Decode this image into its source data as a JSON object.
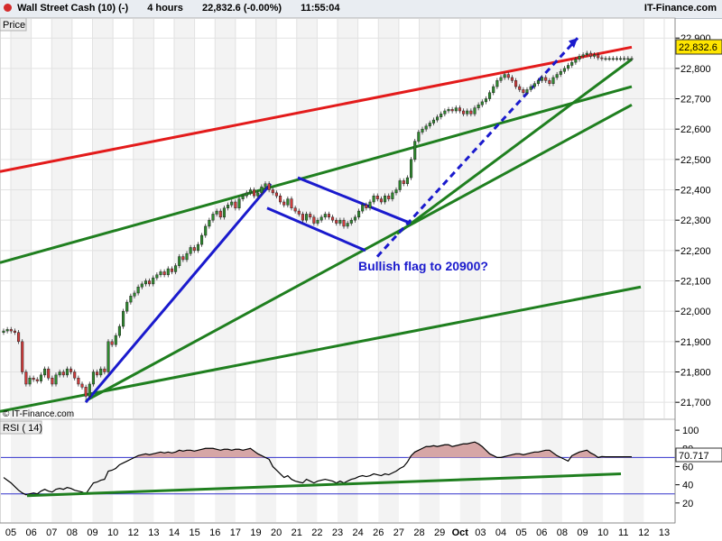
{
  "header": {
    "symbol": "Wall Street Cash (10) (-)",
    "timeframe": "4 hours",
    "price": "22,832.6 (-0.00%)",
    "time": "11:55:04",
    "brand": "IT-Finance.com"
  },
  "panels": {
    "price_label": "Price",
    "rsi_label": "RSI ( 14)",
    "watermark": "© IT-Finance.com",
    "last_price": "22,832.6",
    "last_rsi": "70.717",
    "annotation": "Bullish flag to 20900?"
  },
  "colors": {
    "up": "#2e8b2e",
    "down": "#d13c3c",
    "resistance": "#e31b1b",
    "trend": "#1f7f1f",
    "flag": "#1a1acd",
    "rsi_line": "#000000",
    "rsi_fill": "#d6a6a6"
  },
  "chart_data": [
    {
      "type": "candlestick",
      "title": "Wall Street Cash (10) (-)",
      "ylim": [
        21650,
        22960
      ],
      "yticks": [
        21700,
        21800,
        21900,
        22000,
        22100,
        22200,
        22300,
        22400,
        22500,
        22600,
        22700,
        22800,
        22900
      ],
      "ytick_labels": [
        "21,700",
        "21,800",
        "21,900",
        "22,000",
        "22,100",
        "22,200",
        "22,300",
        "22,400",
        "22,500",
        "22,600",
        "22,700",
        "22,800",
        "22,900"
      ],
      "xticks": [
        "05",
        "06",
        "07",
        "08",
        "09",
        "10",
        "12",
        "13",
        "14",
        "15",
        "16",
        "17",
        "19",
        "20",
        "21",
        "22",
        "23",
        "24",
        "26",
        "27",
        "28",
        "29",
        "Oct",
        "03",
        "04",
        "05",
        "06",
        "08",
        "09",
        "10",
        "11",
        "12",
        "13"
      ],
      "x": [
        0,
        1,
        2,
        3,
        4,
        5,
        6,
        7,
        8,
        9,
        10,
        11,
        12,
        13,
        14,
        15,
        16,
        17,
        18,
        19,
        20,
        21,
        22,
        23,
        24,
        25,
        26,
        27,
        28,
        29,
        30,
        31,
        32,
        33,
        34,
        35,
        36,
        37,
        38,
        39,
        40,
        41,
        42,
        43,
        44,
        45,
        46,
        47,
        48,
        49,
        50,
        51,
        52,
        53,
        54,
        55,
        56,
        57,
        58,
        59,
        60,
        61,
        62,
        63,
        64,
        65,
        66,
        67,
        68,
        69,
        70,
        71,
        72,
        73,
        74,
        75,
        76,
        77,
        78,
        79,
        80,
        81,
        82,
        83,
        84,
        85,
        86,
        87,
        88,
        89,
        90,
        91,
        92,
        93,
        94,
        95,
        96,
        97,
        98,
        99,
        100,
        101,
        102,
        103,
        104,
        105,
        106,
        107,
        108,
        109,
        110,
        111,
        112,
        113,
        114,
        115,
        116,
        117,
        118,
        119,
        120,
        121,
        122,
        123,
        124,
        125,
        126,
        127,
        128,
        129,
        130,
        131,
        132,
        133,
        134,
        135,
        136,
        137,
        138,
        139,
        140,
        141,
        142,
        143,
        144,
        145,
        146,
        147,
        148,
        149,
        150,
        151,
        152,
        153,
        154,
        155,
        156,
        157,
        158,
        159,
        160,
        161,
        162,
        163,
        164,
        165,
        166,
        167,
        168
      ],
      "close": [
        21935,
        21940,
        21935,
        21930,
        21900,
        21800,
        21760,
        21780,
        21775,
        21770,
        21790,
        21810,
        21780,
        21760,
        21790,
        21800,
        21790,
        21810,
        21800,
        21780,
        21760,
        21750,
        21720,
        21760,
        21800,
        21790,
        21810,
        21800,
        21900,
        21890,
        21920,
        21950,
        22000,
        22030,
        22050,
        22060,
        22080,
        22090,
        22100,
        22090,
        22110,
        22120,
        22130,
        22120,
        22140,
        22130,
        22150,
        22180,
        22170,
        22190,
        22210,
        22200,
        22220,
        22250,
        22280,
        22300,
        22320,
        22330,
        22310,
        22340,
        22350,
        22360,
        22340,
        22370,
        22380,
        22390,
        22400,
        22380,
        22390,
        22410,
        22420,
        22400,
        22390,
        22380,
        22360,
        22350,
        22370,
        22340,
        22330,
        22320,
        22300,
        22320,
        22310,
        22290,
        22300,
        22310,
        22320,
        22310,
        22300,
        22290,
        22300,
        22280,
        22290,
        22300,
        22310,
        22330,
        22350,
        22340,
        22360,
        22380,
        22370,
        22360,
        22380,
        22370,
        22390,
        22400,
        22430,
        22420,
        22440,
        22500,
        22560,
        22590,
        22600,
        22610,
        22620,
        22630,
        22640,
        22650,
        22660,
        22665,
        22660,
        22670,
        22660,
        22650,
        22660,
        22650,
        22670,
        22680,
        22690,
        22700,
        22720,
        22740,
        22760,
        22770,
        22780,
        22770,
        22760,
        22740,
        22730,
        22720,
        22730,
        22740,
        22750,
        22760,
        22770,
        22760,
        22750,
        22770,
        22780,
        22790,
        22800,
        22810,
        22820,
        22830,
        22840,
        22845,
        22850,
        22840,
        22845,
        22835,
        22832.6,
        22832.6,
        22832.6,
        22832.6,
        22832.6,
        22832.6,
        22832.6,
        22832.6,
        22832.6
      ],
      "rsi": [
        48,
        45,
        42,
        38,
        34,
        31,
        29,
        30,
        31,
        30,
        33,
        35,
        33,
        32,
        35,
        36,
        35,
        37,
        36,
        34,
        33,
        32,
        30,
        36,
        42,
        43,
        45,
        46,
        55,
        56,
        58,
        62,
        64,
        66,
        68,
        70,
        72,
        73,
        74,
        73,
        74,
        75,
        76,
        75,
        76,
        75,
        76,
        78,
        77,
        78,
        78,
        77,
        78,
        79,
        80,
        80,
        80,
        79,
        78,
        79,
        79,
        78,
        79,
        79,
        78,
        79,
        80,
        77,
        74,
        72,
        70,
        68,
        60,
        56,
        52,
        48,
        50,
        46,
        44,
        43,
        42,
        46,
        44,
        42,
        44,
        45,
        46,
        45,
        44,
        42,
        44,
        42,
        44,
        46,
        47,
        49,
        50,
        49,
        50,
        52,
        51,
        50,
        52,
        51,
        53,
        55,
        58,
        60,
        65,
        72,
        76,
        78,
        80,
        82,
        82,
        83,
        82,
        83,
        84,
        84,
        82,
        83,
        84,
        85,
        85,
        86,
        87,
        85,
        82,
        78,
        74,
        72,
        70,
        70,
        71,
        72,
        73,
        74,
        74,
        73,
        74,
        75,
        76,
        76,
        77,
        78,
        78,
        75,
        72,
        70,
        68,
        66,
        72,
        74,
        76,
        77,
        78,
        75,
        73,
        70,
        71,
        70.717,
        70.717,
        70.717,
        70.717,
        70.717,
        70.717,
        70.717,
        70.717
      ]
    },
    {
      "type": "line",
      "title": "RSI ( 14)",
      "ylim": [
        0,
        110
      ],
      "yticks": [
        20,
        40,
        60,
        80,
        100
      ],
      "levels": [
        30,
        70
      ]
    }
  ]
}
